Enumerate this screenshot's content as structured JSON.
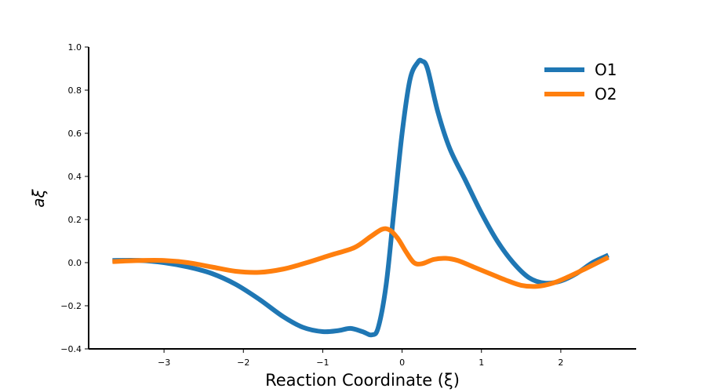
{
  "chart_data": {
    "type": "line",
    "title": "",
    "xlabel": "Reaction Coordinate (ξ)",
    "ylabel": "aξ",
    "xlim": [
      -3.95,
      2.95
    ],
    "ylim": [
      -0.4,
      1.0
    ],
    "x_ticks": [
      {
        "value": -3,
        "label": "−3"
      },
      {
        "value": -2,
        "label": "−2"
      },
      {
        "value": -1,
        "label": "−1"
      },
      {
        "value": 0,
        "label": "0"
      },
      {
        "value": 1,
        "label": "1"
      },
      {
        "value": 2,
        "label": "2"
      }
    ],
    "y_ticks": [
      {
        "value": -0.4,
        "label": "−0.4"
      },
      {
        "value": -0.2,
        "label": "−0.2"
      },
      {
        "value": 0.0,
        "label": "0.0"
      },
      {
        "value": 0.2,
        "label": "0.2"
      },
      {
        "value": 0.4,
        "label": "0.4"
      },
      {
        "value": 0.6,
        "label": "0.6"
      },
      {
        "value": 0.8,
        "label": "0.8"
      },
      {
        "value": 1.0,
        "label": "1.0"
      }
    ],
    "grid": false,
    "legend_position": "top-right",
    "series": [
      {
        "name": "O1",
        "color": "#1f77b4",
        "x": [
          -3.65,
          -3.3,
          -3.0,
          -2.7,
          -2.4,
          -2.1,
          -1.8,
          -1.5,
          -1.25,
          -1.0,
          -0.8,
          -0.65,
          -0.5,
          -0.38,
          -0.3,
          -0.2,
          -0.1,
          0.0,
          0.1,
          0.2,
          0.25,
          0.32,
          0.45,
          0.6,
          0.8,
          1.0,
          1.2,
          1.4,
          1.6,
          1.8,
          2.0,
          2.2,
          2.4,
          2.6
        ],
        "y": [
          0.01,
          0.01,
          0.0,
          -0.02,
          -0.05,
          -0.1,
          -0.17,
          -0.25,
          -0.3,
          -0.32,
          -0.315,
          -0.305,
          -0.32,
          -0.335,
          -0.3,
          -0.1,
          0.25,
          0.6,
          0.85,
          0.93,
          0.935,
          0.9,
          0.7,
          0.53,
          0.38,
          0.23,
          0.1,
          0.0,
          -0.07,
          -0.095,
          -0.085,
          -0.05,
          0.0,
          0.035
        ]
      },
      {
        "name": "O2",
        "color": "#ff7f0e",
        "x": [
          -3.65,
          -3.3,
          -3.0,
          -2.7,
          -2.4,
          -2.1,
          -1.8,
          -1.5,
          -1.2,
          -0.9,
          -0.6,
          -0.4,
          -0.25,
          -0.15,
          -0.05,
          0.05,
          0.15,
          0.25,
          0.4,
          0.55,
          0.7,
          0.9,
          1.1,
          1.3,
          1.5,
          1.7,
          1.9,
          2.1,
          2.3,
          2.6
        ],
        "y": [
          0.005,
          0.01,
          0.01,
          0.0,
          -0.02,
          -0.04,
          -0.045,
          -0.03,
          0.0,
          0.035,
          0.07,
          0.12,
          0.155,
          0.15,
          0.11,
          0.05,
          0.0,
          -0.005,
          0.015,
          0.02,
          0.01,
          -0.02,
          -0.05,
          -0.08,
          -0.105,
          -0.11,
          -0.095,
          -0.065,
          -0.03,
          0.025
        ]
      }
    ]
  }
}
